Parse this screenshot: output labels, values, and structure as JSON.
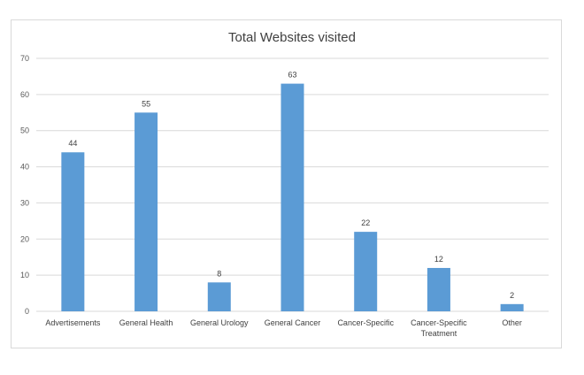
{
  "chart_data": {
    "type": "bar",
    "title": "Total Websites visited",
    "xlabel": "",
    "ylabel": "",
    "ylim": [
      0,
      70
    ],
    "yticks": [
      0,
      10,
      20,
      30,
      40,
      50,
      60,
      70
    ],
    "categories": [
      "Advertisements",
      "General Health",
      "General Urology",
      "General Cancer",
      "Cancer-Specific",
      "Cancer-Specific Treatment",
      "Other"
    ],
    "category_lines": [
      [
        "Advertisements"
      ],
      [
        "General Health"
      ],
      [
        "General Urology"
      ],
      [
        "General Cancer"
      ],
      [
        "Cancer-Specific"
      ],
      [
        "Cancer-Specific",
        "Treatment"
      ],
      [
        "Other"
      ]
    ],
    "values": [
      44,
      55,
      8,
      63,
      22,
      12,
      2
    ],
    "data_labels": true,
    "grid": true,
    "legend": "none",
    "bar_color": "#5b9bd5",
    "grid_color": "#d9d9d9"
  }
}
